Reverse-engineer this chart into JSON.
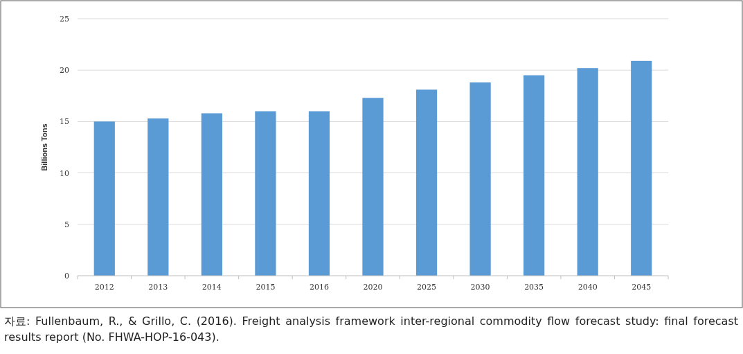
{
  "chart_data": {
    "type": "bar",
    "categories": [
      "2012",
      "2013",
      "2014",
      "2015",
      "2016",
      "2020",
      "2025",
      "2030",
      "2035",
      "2040",
      "2045"
    ],
    "values": [
      15.0,
      15.3,
      15.8,
      16.0,
      16.0,
      17.3,
      18.1,
      18.8,
      19.5,
      20.2,
      20.9
    ],
    "color": "#5b9bd5",
    "ylabel": "Billions Tons",
    "ylim": [
      0,
      25
    ],
    "yticks": [
      0,
      5,
      10,
      15,
      20,
      25
    ],
    "grid": "y",
    "annotations": [
      "자료: Fullenbaum, R., & Grillo, C. (2016). Freight analysis framework inter-regional commodity flow forecast study: final forecast results report (No. FHWA-HOP-16-043)."
    ]
  }
}
